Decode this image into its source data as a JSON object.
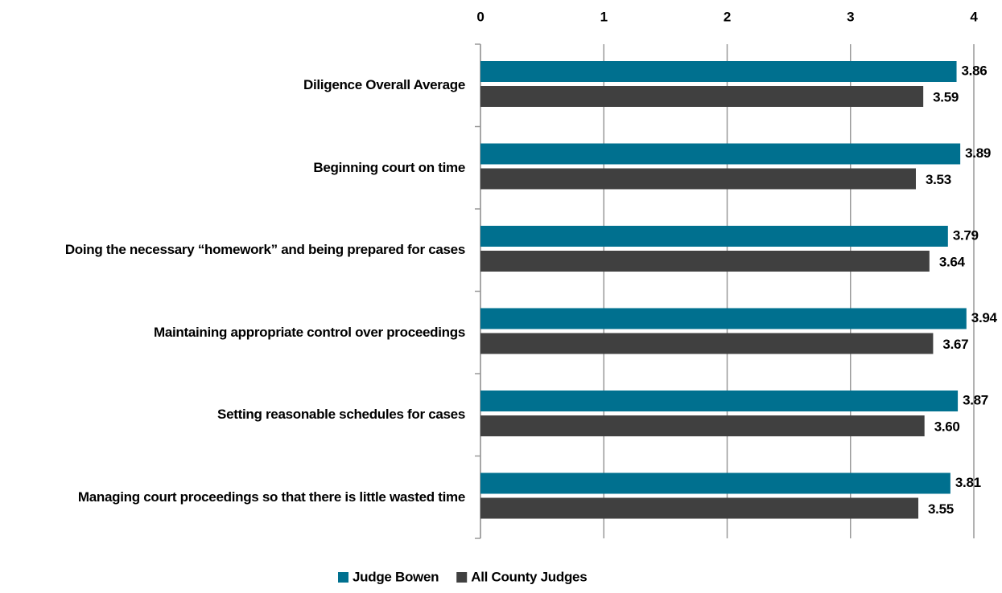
{
  "chart_data": {
    "type": "bar",
    "orientation": "horizontal",
    "categories": [
      "Diligence Overall Average",
      "Beginning court on time",
      "Doing the necessary “homework” and being prepared for cases",
      "Maintaining appropriate control over proceedings",
      "Setting reasonable schedules for cases",
      "Managing court proceedings so that there is little wasted time"
    ],
    "series": [
      {
        "name": "Judge Bowen",
        "color": "#00708f",
        "values": [
          3.86,
          3.89,
          3.79,
          3.94,
          3.87,
          3.81
        ],
        "value_labels": [
          "3.86",
          "3.89",
          "3.79",
          "3.94",
          "3.87",
          "3.81"
        ]
      },
      {
        "name": "All County Judges",
        "color": "#404040",
        "values": [
          3.59,
          3.53,
          3.64,
          3.67,
          3.6,
          3.55
        ],
        "value_labels": [
          "3.59",
          "3.53",
          "3.64",
          "3.67",
          "3.60",
          "3.55"
        ]
      }
    ],
    "xlim": [
      0,
      4
    ],
    "xticks": [
      0,
      1,
      2,
      3,
      4
    ],
    "grid": true,
    "legend": "bottom"
  }
}
